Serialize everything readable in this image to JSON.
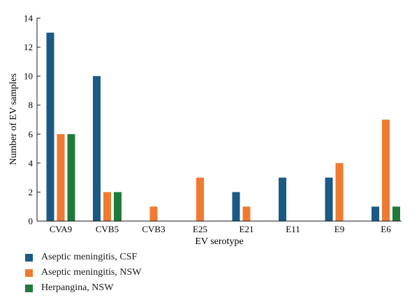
{
  "chart_data": {
    "type": "bar",
    "xlabel": "EV serotype",
    "ylabel": "Number of EV samples",
    "ylim": [
      0,
      14
    ],
    "yticks": [
      0,
      2,
      4,
      6,
      8,
      10,
      12,
      14
    ],
    "categories": [
      "CVA9",
      "CVB5",
      "CVB3",
      "E25",
      "E21",
      "E11",
      "E9",
      "E6"
    ],
    "series": [
      {
        "name": "Aseptic meningitis, CSF",
        "color": "#1a5a84",
        "values": [
          13,
          10,
          0,
          0,
          2,
          3,
          3,
          1
        ]
      },
      {
        "name": "Aseptic meningitis, NSW",
        "color": "#f07a30",
        "values": [
          6,
          2,
          1,
          3,
          1,
          0,
          4,
          7
        ]
      },
      {
        "name": "Herpangina, NSW",
        "color": "#1f7a3c",
        "values": [
          6,
          2,
          0,
          0,
          0,
          0,
          0,
          1
        ]
      }
    ],
    "legend_position": "bottom-left",
    "grid": false
  }
}
